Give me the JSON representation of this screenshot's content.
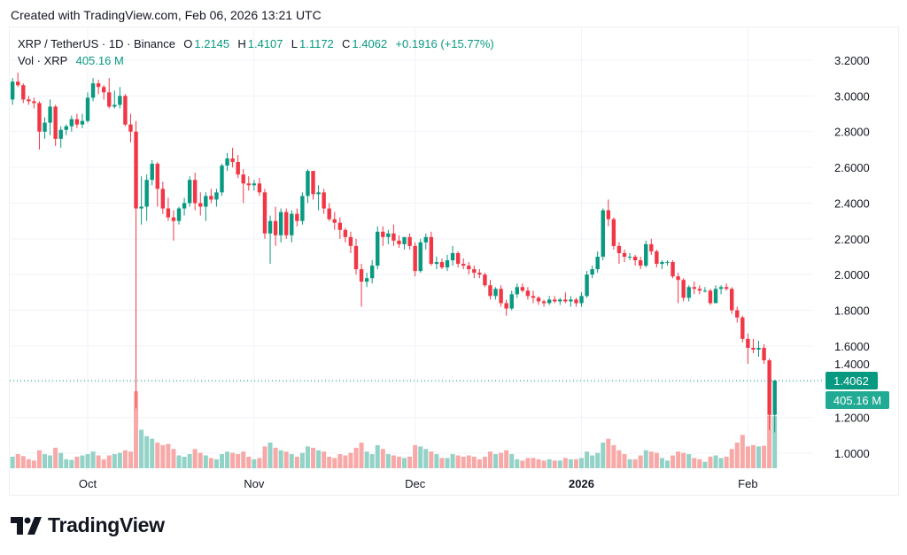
{
  "credit": "Created with TradingView.com, Feb 06, 2026 13:21 UTC",
  "legend": {
    "symbol": "XRP / TetherUS · 1D · Binance",
    "o_label": "O",
    "o": "1.2145",
    "h_label": "H",
    "h": "1.4107",
    "l_label": "L",
    "l": "1.1172",
    "c_label": "C",
    "c": "1.4062",
    "change": "+0.1916 (+15.77%)",
    "vol_label": "Vol · XRP",
    "vol": "405.16 M"
  },
  "brand": "TradingView",
  "chart_data": {
    "type": "candlestick",
    "title": "XRP / TetherUS · 1D · Binance",
    "y_ticks": [
      "3.2000",
      "3.0000",
      "2.8000",
      "2.6000",
      "2.4000",
      "2.2000",
      "2.0000",
      "1.8000",
      "1.6000",
      "1.4000",
      "1.2000",
      "1.0000"
    ],
    "ylim": [
      1.0,
      3.2
    ],
    "x_ticks": [
      {
        "date": "2025-10-01",
        "label": "Oct",
        "bold": false
      },
      {
        "date": "2025-11-01",
        "label": "Nov",
        "bold": false
      },
      {
        "date": "2025-12-01",
        "label": "Dec",
        "bold": false
      },
      {
        "date": "2026-01-01",
        "label": "2026",
        "bold": true
      },
      {
        "date": "2026-02-01",
        "label": "Feb",
        "bold": false
      }
    ],
    "last_price_label": "1.4062",
    "last_volume_label": "405.16 M",
    "colors": {
      "up": "#089981",
      "down": "#f23645",
      "vol_up": "#92d2c7",
      "vol_down": "#f7a9a7",
      "grid": "#f0f3fa"
    },
    "columns": [
      "date",
      "open",
      "high",
      "low",
      "close",
      "volume_M"
    ],
    "candles": [
      [
        "2025-09-17",
        2.98,
        3.1,
        2.95,
        3.08,
        90
      ],
      [
        "2025-09-18",
        3.08,
        3.13,
        3.05,
        3.06,
        110
      ],
      [
        "2025-09-19",
        3.06,
        3.07,
        2.96,
        2.98,
        95
      ],
      [
        "2025-09-20",
        2.98,
        3.0,
        2.95,
        2.97,
        70
      ],
      [
        "2025-09-21",
        2.97,
        2.99,
        2.93,
        2.96,
        60
      ],
      [
        "2025-09-22",
        2.96,
        2.97,
        2.7,
        2.8,
        140
      ],
      [
        "2025-09-23",
        2.8,
        2.88,
        2.76,
        2.85,
        110
      ],
      [
        "2025-09-24",
        2.85,
        2.98,
        2.78,
        2.94,
        100
      ],
      [
        "2025-09-25",
        2.94,
        2.95,
        2.72,
        2.76,
        160
      ],
      [
        "2025-09-26",
        2.76,
        2.83,
        2.71,
        2.81,
        120
      ],
      [
        "2025-09-27",
        2.81,
        2.84,
        2.78,
        2.83,
        70
      ],
      [
        "2025-09-28",
        2.83,
        2.89,
        2.8,
        2.87,
        65
      ],
      [
        "2025-09-29",
        2.87,
        2.9,
        2.82,
        2.84,
        90
      ],
      [
        "2025-09-30",
        2.84,
        2.9,
        2.82,
        2.86,
        100
      ],
      [
        "2025-10-01",
        2.86,
        3.02,
        2.85,
        2.99,
        110
      ],
      [
        "2025-10-02",
        2.99,
        3.1,
        2.97,
        3.07,
        130
      ],
      [
        "2025-10-03",
        3.07,
        3.09,
        3.01,
        3.05,
        100
      ],
      [
        "2025-10-04",
        3.05,
        3.06,
        2.98,
        3.02,
        70
      ],
      [
        "2025-10-05",
        3.02,
        3.1,
        2.93,
        2.94,
        100
      ],
      [
        "2025-10-06",
        2.94,
        3.03,
        2.93,
        2.95,
        110
      ],
      [
        "2025-10-07",
        2.95,
        3.05,
        2.93,
        3.0,
        120
      ],
      [
        "2025-10-08",
        3.0,
        3.01,
        2.83,
        2.84,
        140
      ],
      [
        "2025-10-09",
        2.84,
        2.9,
        2.74,
        2.8,
        130
      ],
      [
        "2025-10-10",
        2.8,
        2.86,
        1.25,
        2.37,
        600
      ],
      [
        "2025-10-11",
        2.37,
        2.55,
        2.28,
        2.38,
        300
      ],
      [
        "2025-10-12",
        2.38,
        2.56,
        2.3,
        2.53,
        250
      ],
      [
        "2025-10-13",
        2.53,
        2.64,
        2.5,
        2.62,
        230
      ],
      [
        "2025-10-14",
        2.62,
        2.63,
        2.38,
        2.48,
        200
      ],
      [
        "2025-10-15",
        2.48,
        2.52,
        2.34,
        2.37,
        180
      ],
      [
        "2025-10-16",
        2.37,
        2.43,
        2.3,
        2.32,
        190
      ],
      [
        "2025-10-17",
        2.32,
        2.36,
        2.19,
        2.3,
        150
      ],
      [
        "2025-10-18",
        2.3,
        2.38,
        2.28,
        2.37,
        100
      ],
      [
        "2025-10-19",
        2.37,
        2.43,
        2.33,
        2.4,
        90
      ],
      [
        "2025-10-20",
        2.4,
        2.55,
        2.38,
        2.53,
        110
      ],
      [
        "2025-10-21",
        2.53,
        2.57,
        2.36,
        2.4,
        150
      ],
      [
        "2025-10-22",
        2.4,
        2.46,
        2.33,
        2.38,
        120
      ],
      [
        "2025-10-23",
        2.38,
        2.46,
        2.3,
        2.44,
        100
      ],
      [
        "2025-10-24",
        2.44,
        2.48,
        2.4,
        2.42,
        80
      ],
      [
        "2025-10-25",
        2.42,
        2.48,
        2.38,
        2.46,
        70
      ],
      [
        "2025-10-26",
        2.46,
        2.62,
        2.44,
        2.61,
        110
      ],
      [
        "2025-10-27",
        2.61,
        2.68,
        2.58,
        2.65,
        130
      ],
      [
        "2025-10-28",
        2.65,
        2.71,
        2.6,
        2.63,
        120
      ],
      [
        "2025-10-29",
        2.63,
        2.67,
        2.54,
        2.56,
        110
      ],
      [
        "2025-10-30",
        2.56,
        2.59,
        2.4,
        2.51,
        130
      ],
      [
        "2025-10-31",
        2.51,
        2.55,
        2.47,
        2.5,
        90
      ],
      [
        "2025-11-01",
        2.5,
        2.53,
        2.47,
        2.51,
        70
      ],
      [
        "2025-11-02",
        2.51,
        2.54,
        2.44,
        2.46,
        80
      ],
      [
        "2025-11-03",
        2.46,
        2.48,
        2.2,
        2.23,
        170
      ],
      [
        "2025-11-04",
        2.23,
        2.33,
        2.06,
        2.3,
        200
      ],
      [
        "2025-11-05",
        2.3,
        2.38,
        2.16,
        2.22,
        160
      ],
      [
        "2025-11-06",
        2.22,
        2.37,
        2.18,
        2.35,
        140
      ],
      [
        "2025-11-07",
        2.35,
        2.37,
        2.2,
        2.22,
        130
      ],
      [
        "2025-11-08",
        2.22,
        2.36,
        2.18,
        2.34,
        110
      ],
      [
        "2025-11-09",
        2.34,
        2.37,
        2.27,
        2.3,
        90
      ],
      [
        "2025-11-10",
        2.3,
        2.46,
        2.28,
        2.44,
        120
      ],
      [
        "2025-11-11",
        2.44,
        2.59,
        2.4,
        2.58,
        170
      ],
      [
        "2025-11-12",
        2.58,
        2.58,
        2.42,
        2.45,
        160
      ],
      [
        "2025-11-13",
        2.45,
        2.5,
        2.36,
        2.46,
        140
      ],
      [
        "2025-11-14",
        2.46,
        2.48,
        2.34,
        2.37,
        130
      ],
      [
        "2025-11-15",
        2.37,
        2.4,
        2.3,
        2.31,
        90
      ],
      [
        "2025-11-16",
        2.31,
        2.35,
        2.25,
        2.29,
        80
      ],
      [
        "2025-11-17",
        2.29,
        2.32,
        2.2,
        2.25,
        110
      ],
      [
        "2025-11-18",
        2.25,
        2.26,
        2.18,
        2.21,
        100
      ],
      [
        "2025-11-19",
        2.21,
        2.24,
        2.12,
        2.16,
        120
      ],
      [
        "2025-11-20",
        2.16,
        2.2,
        2.0,
        2.03,
        160
      ],
      [
        "2025-11-21",
        2.03,
        2.06,
        1.82,
        1.96,
        200
      ],
      [
        "2025-11-22",
        1.96,
        2.01,
        1.93,
        1.98,
        130
      ],
      [
        "2025-11-23",
        1.98,
        2.08,
        1.95,
        2.05,
        110
      ],
      [
        "2025-11-24",
        2.05,
        2.27,
        2.03,
        2.24,
        180
      ],
      [
        "2025-11-25",
        2.24,
        2.27,
        2.16,
        2.21,
        150
      ],
      [
        "2025-11-26",
        2.21,
        2.25,
        2.17,
        2.23,
        110
      ],
      [
        "2025-11-27",
        2.23,
        2.28,
        2.16,
        2.19,
        100
      ],
      [
        "2025-11-28",
        2.19,
        2.22,
        2.15,
        2.17,
        90
      ],
      [
        "2025-11-29",
        2.17,
        2.2,
        2.14,
        2.21,
        80
      ],
      [
        "2025-11-30",
        2.21,
        2.23,
        2.14,
        2.16,
        90
      ],
      [
        "2025-12-01",
        2.16,
        2.18,
        1.99,
        2.02,
        180
      ],
      [
        "2025-12-02",
        2.02,
        2.2,
        2.01,
        2.18,
        170
      ],
      [
        "2025-12-03",
        2.18,
        2.23,
        2.14,
        2.21,
        150
      ],
      [
        "2025-12-04",
        2.21,
        2.24,
        2.05,
        2.06,
        130
      ],
      [
        "2025-12-05",
        2.06,
        2.1,
        2.03,
        2.07,
        110
      ],
      [
        "2025-12-06",
        2.07,
        2.09,
        2.03,
        2.04,
        80
      ],
      [
        "2025-12-07",
        2.04,
        2.11,
        2.02,
        2.08,
        80
      ],
      [
        "2025-12-08",
        2.08,
        2.16,
        2.05,
        2.12,
        110
      ],
      [
        "2025-12-09",
        2.12,
        2.13,
        2.04,
        2.06,
        100
      ],
      [
        "2025-12-10",
        2.06,
        2.09,
        2.03,
        2.05,
        90
      ],
      [
        "2025-12-11",
        2.05,
        2.07,
        2.0,
        2.03,
        100
      ],
      [
        "2025-12-12",
        2.03,
        2.05,
        1.98,
        2.01,
        90
      ],
      [
        "2025-12-13",
        2.01,
        2.03,
        1.98,
        2.0,
        70
      ],
      [
        "2025-12-14",
        2.0,
        2.01,
        1.93,
        1.94,
        90
      ],
      [
        "2025-12-15",
        1.94,
        1.97,
        1.86,
        1.88,
        130
      ],
      [
        "2025-12-16",
        1.88,
        1.93,
        1.86,
        1.92,
        110
      ],
      [
        "2025-12-17",
        1.92,
        1.94,
        1.82,
        1.84,
        120
      ],
      [
        "2025-12-18",
        1.84,
        1.86,
        1.77,
        1.81,
        140
      ],
      [
        "2025-12-19",
        1.81,
        1.91,
        1.8,
        1.89,
        110
      ],
      [
        "2025-12-20",
        1.89,
        1.95,
        1.87,
        1.93,
        70
      ],
      [
        "2025-12-21",
        1.93,
        1.95,
        1.9,
        1.91,
        60
      ],
      [
        "2025-12-22",
        1.91,
        1.93,
        1.86,
        1.88,
        80
      ],
      [
        "2025-12-23",
        1.88,
        1.91,
        1.84,
        1.87,
        80
      ],
      [
        "2025-12-24",
        1.87,
        1.88,
        1.83,
        1.85,
        70
      ],
      [
        "2025-12-25",
        1.85,
        1.86,
        1.82,
        1.84,
        60
      ],
      [
        "2025-12-26",
        1.84,
        1.88,
        1.83,
        1.86,
        70
      ],
      [
        "2025-12-27",
        1.86,
        1.88,
        1.84,
        1.85,
        60
      ],
      [
        "2025-12-28",
        1.85,
        1.87,
        1.83,
        1.86,
        60
      ],
      [
        "2025-12-29",
        1.86,
        1.9,
        1.84,
        1.85,
        80
      ],
      [
        "2025-12-30",
        1.85,
        1.88,
        1.82,
        1.86,
        70
      ],
      [
        "2025-12-31",
        1.86,
        1.87,
        1.82,
        1.84,
        70
      ],
      [
        "2026-01-01",
        1.84,
        1.9,
        1.82,
        1.88,
        80
      ],
      [
        "2026-01-02",
        1.88,
        2.02,
        1.87,
        2.0,
        130
      ],
      [
        "2026-01-03",
        2.0,
        2.05,
        1.98,
        2.03,
        100
      ],
      [
        "2026-01-04",
        2.03,
        2.13,
        2.01,
        2.1,
        120
      ],
      [
        "2026-01-05",
        2.1,
        2.37,
        2.08,
        2.36,
        200
      ],
      [
        "2026-01-06",
        2.36,
        2.42,
        2.27,
        2.31,
        230
      ],
      [
        "2026-01-07",
        2.31,
        2.32,
        2.14,
        2.16,
        180
      ],
      [
        "2026-01-08",
        2.16,
        2.18,
        2.06,
        2.12,
        140
      ],
      [
        "2026-01-09",
        2.12,
        2.14,
        2.07,
        2.1,
        110
      ],
      [
        "2026-01-10",
        2.1,
        2.12,
        2.08,
        2.1,
        70
      ],
      [
        "2026-01-11",
        2.1,
        2.11,
        2.05,
        2.08,
        70
      ],
      [
        "2026-01-12",
        2.08,
        2.1,
        2.03,
        2.05,
        100
      ],
      [
        "2026-01-13",
        2.05,
        2.19,
        2.04,
        2.17,
        140
      ],
      [
        "2026-01-14",
        2.17,
        2.2,
        2.11,
        2.13,
        130
      ],
      [
        "2026-01-15",
        2.13,
        2.14,
        2.04,
        2.06,
        120
      ],
      [
        "2026-01-16",
        2.06,
        2.08,
        2.03,
        2.07,
        80
      ],
      [
        "2026-01-17",
        2.07,
        2.08,
        2.05,
        2.07,
        60
      ],
      [
        "2026-01-18",
        2.07,
        2.08,
        1.98,
        1.99,
        100
      ],
      [
        "2026-01-19",
        1.99,
        2.01,
        1.84,
        1.97,
        130
      ],
      [
        "2026-01-20",
        1.97,
        1.98,
        1.85,
        1.87,
        120
      ],
      [
        "2026-01-21",
        1.87,
        1.94,
        1.85,
        1.93,
        110
      ],
      [
        "2026-01-22",
        1.93,
        1.96,
        1.89,
        1.92,
        80
      ],
      [
        "2026-01-23",
        1.92,
        1.94,
        1.89,
        1.91,
        70
      ],
      [
        "2026-01-24",
        1.91,
        1.93,
        1.9,
        1.91,
        50
      ],
      [
        "2026-01-25",
        1.91,
        1.92,
        1.83,
        1.84,
        90
      ],
      [
        "2026-01-26",
        1.84,
        1.94,
        1.84,
        1.92,
        100
      ],
      [
        "2026-01-27",
        1.92,
        1.94,
        1.89,
        1.93,
        80
      ],
      [
        "2026-01-28",
        1.93,
        1.95,
        1.91,
        1.92,
        90
      ],
      [
        "2026-01-29",
        1.92,
        1.93,
        1.78,
        1.8,
        150
      ],
      [
        "2026-01-30",
        1.8,
        1.82,
        1.73,
        1.76,
        200
      ],
      [
        "2026-01-31",
        1.76,
        1.77,
        1.62,
        1.64,
        260
      ],
      [
        "2026-02-01",
        1.64,
        1.67,
        1.5,
        1.59,
        170
      ],
      [
        "2026-02-02",
        1.59,
        1.64,
        1.56,
        1.58,
        180
      ],
      [
        "2026-02-03",
        1.58,
        1.63,
        1.54,
        1.59,
        170
      ],
      [
        "2026-02-04",
        1.59,
        1.61,
        1.5,
        1.52,
        175
      ],
      [
        "2026-02-05",
        1.52,
        1.53,
        1.13,
        1.2145,
        410
      ],
      [
        "2026-02-06",
        1.2145,
        1.4107,
        1.1172,
        1.4062,
        405.16
      ]
    ]
  }
}
